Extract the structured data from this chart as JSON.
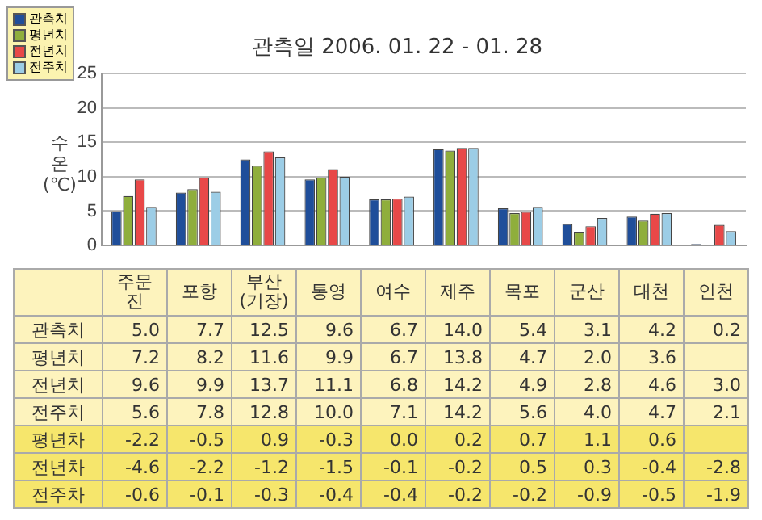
{
  "chart_data": {
    "type": "bar",
    "title": "관측일 2006. 01. 22 - 01. 28",
    "ylabel": "수온 (℃)",
    "categories": [
      "주문진",
      "포항",
      "부산 (기장)",
      "통영",
      "여수",
      "제주",
      "목포",
      "군산",
      "대천",
      "인천"
    ],
    "series": [
      {
        "name": "관측치",
        "color": "#1f4e9a",
        "values": [
          5.0,
          7.7,
          12.5,
          9.6,
          6.7,
          14.0,
          5.4,
          3.1,
          4.2,
          0.2
        ],
        "value_labels": [
          "5.0",
          "7.7",
          "12.5",
          "9.6",
          "6.7",
          "14.0",
          "5.4",
          "3.1",
          "4.2",
          "0.2"
        ]
      },
      {
        "name": "평년치",
        "color": "#8fae3c",
        "values": [
          7.2,
          8.2,
          11.6,
          9.9,
          6.7,
          13.8,
          4.7,
          2.0,
          3.6,
          null
        ],
        "value_labels": [
          "7.2",
          "8.2",
          "11.6",
          "9.9",
          "6.7",
          "13.8",
          "4.7",
          "2.0",
          "3.6",
          null
        ]
      },
      {
        "name": "전년치",
        "color": "#e84848",
        "values": [
          9.6,
          9.9,
          13.7,
          11.1,
          6.8,
          14.2,
          4.9,
          2.8,
          4.6,
          3.0
        ],
        "value_labels": [
          "9.6",
          "9.9",
          "13.7",
          "11.1",
          "6.8",
          "14.2",
          "4.9",
          "2.8",
          "4.6",
          "3.0"
        ]
      },
      {
        "name": "전주치",
        "color": "#9ccde6",
        "values": [
          5.6,
          7.8,
          12.8,
          10.0,
          7.1,
          14.2,
          5.6,
          4.0,
          4.7,
          2.1
        ],
        "value_labels": [
          "5.6",
          "7.8",
          "12.8",
          "10.0",
          "7.1",
          "14.2",
          "5.6",
          "4.0",
          "4.7",
          "2.1"
        ]
      }
    ],
    "annotations": [
      "평년차\t-2.2\t-0.5\t0.9\t-0.3\t0.0\t0.2\t0.7\t1.1\t0.6\t",
      "전년차\t-4.6\t-2.2\t-1.2\t-1.5\t-0.1\t-0.2\t0.5\t0.3\t-0.4\t-2.8",
      "전주차\t-0.6\t-0.1\t-0.3\t-0.4\t-0.4\t-0.2\t-0.2\t-0.9\t-0.5\t-1.9"
    ],
    "ylim": [
      0,
      25
    ],
    "yticks": [
      0,
      5,
      10,
      15,
      20,
      25
    ],
    "grid": "y",
    "legend": "top left",
    "tick_labels": "y"
  }
}
